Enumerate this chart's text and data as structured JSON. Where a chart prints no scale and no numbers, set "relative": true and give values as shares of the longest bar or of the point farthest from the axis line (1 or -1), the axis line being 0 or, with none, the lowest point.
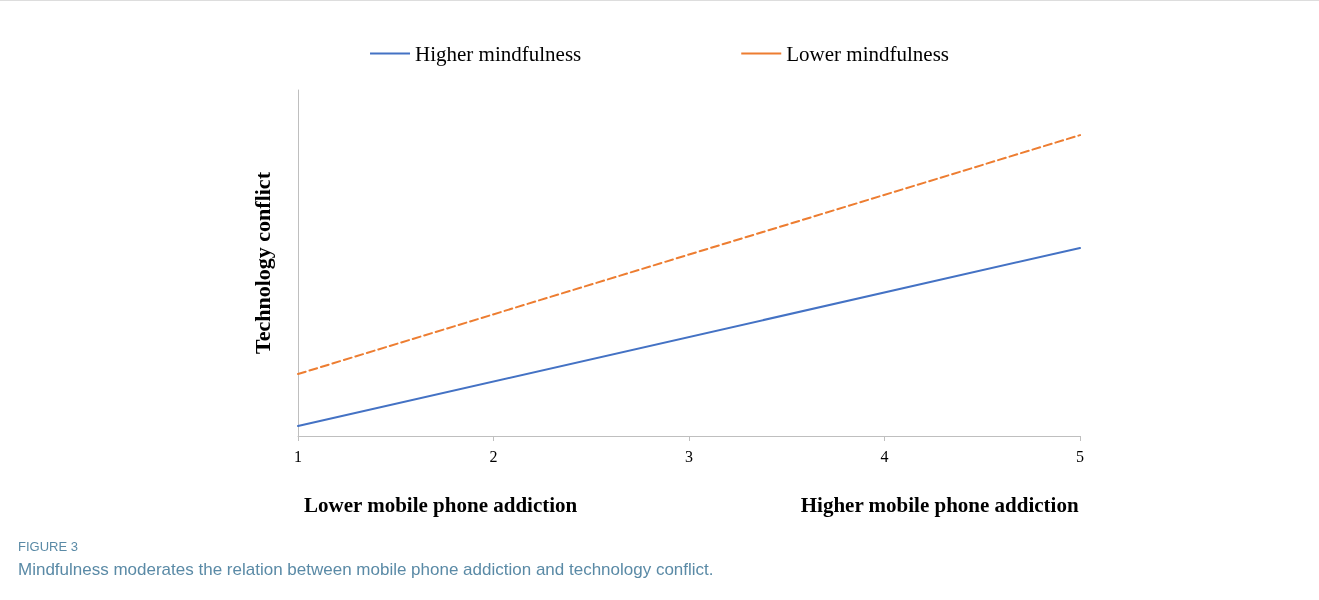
{
  "chart_data": {
    "type": "line",
    "relative": true,
    "ylabel": "Technology conflict",
    "x": [
      1,
      5
    ],
    "xlim": [
      1,
      5
    ],
    "xticks": [
      1,
      2,
      3,
      4,
      5
    ],
    "series": [
      {
        "name": "Higher mindfulness",
        "color": "#4472c4",
        "values": [
          0.033,
          0.625
        ],
        "line_style": "solid"
      },
      {
        "name": "Lower mindfulness",
        "color": "#ed7d31",
        "values": [
          0.206,
          1
        ],
        "line_style": "dashed"
      }
    ],
    "grid": false,
    "legend": "top",
    "marker": "none",
    "annotations": [
      "Lower mobile phone addiction",
      "Higher mobile phone addiction",
      "FIGURE 3",
      "Mindfulness moderates the relation between mobile phone addiction and technology conflict."
    ]
  }
}
